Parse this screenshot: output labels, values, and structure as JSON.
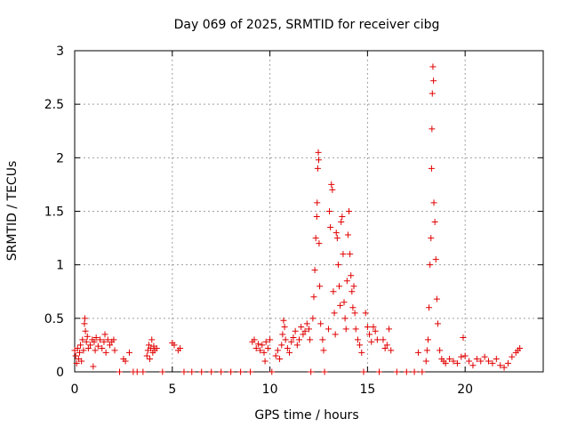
{
  "chart_data": {
    "type": "scatter",
    "title": "Day 069 of 2025, SRMTID for receiver cibg",
    "xlabel": "GPS time / hours",
    "ylabel": "SRMTID / TECUs",
    "xlim": [
      0,
      24.0
    ],
    "ylim": [
      0,
      3
    ],
    "xticks": [
      0,
      5,
      10,
      15,
      20
    ],
    "yticks": [
      0,
      0.5,
      1,
      1.5,
      2,
      2.5,
      3
    ],
    "xtick_labels": [
      "0",
      "5",
      "10",
      "15",
      "20"
    ],
    "ytick_labels": [
      "0",
      "0.5",
      "1",
      "1.5",
      "2",
      "2.5",
      "3"
    ],
    "grid": true,
    "marker": "+",
    "color": "#e00000",
    "series": [
      {
        "name": "SRMTID",
        "points": [
          [
            0.0,
            0.2
          ],
          [
            0.05,
            0.15
          ],
          [
            0.1,
            0.08
          ],
          [
            0.15,
            0.22
          ],
          [
            0.2,
            0.12
          ],
          [
            0.25,
            0.18
          ],
          [
            0.3,
            0.25
          ],
          [
            0.35,
            0.1
          ],
          [
            0.4,
            0.3
          ],
          [
            0.45,
            0.2
          ],
          [
            0.5,
            0.45
          ],
          [
            0.52,
            0.5
          ],
          [
            0.55,
            0.38
          ],
          [
            0.6,
            0.28
          ],
          [
            0.65,
            0.33
          ],
          [
            0.7,
            0.22
          ],
          [
            0.8,
            0.25
          ],
          [
            0.9,
            0.3
          ],
          [
            0.95,
            0.05
          ],
          [
            1.0,
            0.28
          ],
          [
            1.05,
            0.2
          ],
          [
            1.1,
            0.32
          ],
          [
            1.2,
            0.24
          ],
          [
            1.3,
            0.3
          ],
          [
            1.4,
            0.22
          ],
          [
            1.5,
            0.28
          ],
          [
            1.55,
            0.35
          ],
          [
            1.6,
            0.18
          ],
          [
            1.7,
            0.3
          ],
          [
            1.8,
            0.25
          ],
          [
            1.9,
            0.28
          ],
          [
            2.0,
            0.3
          ],
          [
            2.05,
            0.2
          ],
          [
            2.3,
            0.0
          ],
          [
            2.5,
            0.12
          ],
          [
            2.6,
            0.1
          ],
          [
            2.8,
            0.18
          ],
          [
            3.0,
            0.0
          ],
          [
            3.2,
            0.0
          ],
          [
            3.5,
            0.0
          ],
          [
            3.7,
            0.15
          ],
          [
            3.75,
            0.2
          ],
          [
            3.8,
            0.25
          ],
          [
            3.85,
            0.12
          ],
          [
            3.9,
            0.22
          ],
          [
            3.95,
            0.3
          ],
          [
            4.0,
            0.18
          ],
          [
            4.05,
            0.24
          ],
          [
            4.1,
            0.2
          ],
          [
            4.2,
            0.22
          ],
          [
            4.5,
            0.0
          ],
          [
            5.0,
            0.27
          ],
          [
            5.1,
            0.25
          ],
          [
            5.3,
            0.2
          ],
          [
            5.4,
            0.22
          ],
          [
            5.6,
            0.0
          ],
          [
            6.0,
            0.0
          ],
          [
            6.5,
            0.0
          ],
          [
            7.0,
            0.0
          ],
          [
            7.5,
            0.0
          ],
          [
            8.0,
            0.0
          ],
          [
            8.5,
            0.0
          ],
          [
            9.0,
            0.0
          ],
          [
            9.1,
            0.28
          ],
          [
            9.2,
            0.3
          ],
          [
            9.3,
            0.22
          ],
          [
            9.4,
            0.26
          ],
          [
            9.5,
            0.2
          ],
          [
            9.6,
            0.25
          ],
          [
            9.7,
            0.18
          ],
          [
            9.75,
            0.1
          ],
          [
            9.8,
            0.28
          ],
          [
            9.9,
            0.22
          ],
          [
            10.0,
            0.3
          ],
          [
            10.1,
            0.0
          ],
          [
            10.3,
            0.15
          ],
          [
            10.4,
            0.2
          ],
          [
            10.5,
            0.12
          ],
          [
            10.6,
            0.25
          ],
          [
            10.65,
            0.35
          ],
          [
            10.7,
            0.48
          ],
          [
            10.75,
            0.42
          ],
          [
            10.8,
            0.3
          ],
          [
            10.9,
            0.22
          ],
          [
            11.0,
            0.18
          ],
          [
            11.1,
            0.28
          ],
          [
            11.2,
            0.32
          ],
          [
            11.3,
            0.38
          ],
          [
            11.4,
            0.25
          ],
          [
            11.5,
            0.3
          ],
          [
            11.6,
            0.42
          ],
          [
            11.7,
            0.35
          ],
          [
            11.8,
            0.38
          ],
          [
            11.9,
            0.45
          ],
          [
            12.0,
            0.4
          ],
          [
            12.05,
            0.3
          ],
          [
            12.1,
            0.0
          ],
          [
            12.2,
            0.5
          ],
          [
            12.25,
            0.7
          ],
          [
            12.3,
            0.95
          ],
          [
            12.35,
            1.25
          ],
          [
            12.4,
            1.45
          ],
          [
            12.42,
            1.58
          ],
          [
            12.45,
            1.9
          ],
          [
            12.48,
            2.05
          ],
          [
            12.5,
            1.98
          ],
          [
            12.52,
            1.2
          ],
          [
            12.55,
            0.8
          ],
          [
            12.6,
            0.45
          ],
          [
            12.7,
            0.3
          ],
          [
            12.75,
            0.2
          ],
          [
            12.8,
            0.0
          ],
          [
            13.0,
            0.4
          ],
          [
            13.05,
            1.5
          ],
          [
            13.1,
            1.35
          ],
          [
            13.15,
            1.75
          ],
          [
            13.2,
            1.7
          ],
          [
            13.25,
            0.75
          ],
          [
            13.3,
            0.55
          ],
          [
            13.35,
            0.35
          ],
          [
            13.4,
            1.3
          ],
          [
            13.45,
            1.25
          ],
          [
            13.5,
            1.0
          ],
          [
            13.55,
            0.8
          ],
          [
            13.6,
            0.62
          ],
          [
            13.65,
            1.4
          ],
          [
            13.7,
            1.45
          ],
          [
            13.75,
            1.1
          ],
          [
            13.8,
            0.65
          ],
          [
            13.85,
            0.5
          ],
          [
            13.9,
            0.4
          ],
          [
            13.95,
            0.85
          ],
          [
            14.0,
            1.28
          ],
          [
            14.05,
            1.5
          ],
          [
            14.1,
            1.1
          ],
          [
            14.15,
            0.9
          ],
          [
            14.2,
            0.75
          ],
          [
            14.25,
            0.6
          ],
          [
            14.3,
            0.8
          ],
          [
            14.35,
            0.55
          ],
          [
            14.4,
            0.4
          ],
          [
            14.5,
            0.3
          ],
          [
            14.6,
            0.25
          ],
          [
            14.7,
            0.18
          ],
          [
            14.8,
            0.0
          ],
          [
            14.9,
            0.55
          ],
          [
            15.0,
            0.42
          ],
          [
            15.1,
            0.35
          ],
          [
            15.2,
            0.28
          ],
          [
            15.3,
            0.42
          ],
          [
            15.4,
            0.38
          ],
          [
            15.5,
            0.3
          ],
          [
            15.6,
            0.0
          ],
          [
            15.8,
            0.3
          ],
          [
            15.9,
            0.22
          ],
          [
            16.0,
            0.25
          ],
          [
            16.1,
            0.4
          ],
          [
            16.2,
            0.2
          ],
          [
            16.5,
            0.0
          ],
          [
            17.0,
            0.0
          ],
          [
            17.4,
            0.0
          ],
          [
            17.6,
            0.18
          ],
          [
            17.8,
            0.0
          ],
          [
            18.0,
            0.1
          ],
          [
            18.05,
            0.2
          ],
          [
            18.1,
            0.3
          ],
          [
            18.15,
            0.6
          ],
          [
            18.2,
            1.0
          ],
          [
            18.25,
            1.25
          ],
          [
            18.28,
            1.9
          ],
          [
            18.3,
            2.27
          ],
          [
            18.32,
            2.6
          ],
          [
            18.35,
            2.85
          ],
          [
            18.38,
            2.72
          ],
          [
            18.4,
            1.58
          ],
          [
            18.45,
            1.4
          ],
          [
            18.5,
            1.05
          ],
          [
            18.55,
            0.68
          ],
          [
            18.6,
            0.45
          ],
          [
            18.7,
            0.2
          ],
          [
            18.8,
            0.12
          ],
          [
            18.9,
            0.1
          ],
          [
            19.0,
            0.08
          ],
          [
            19.2,
            0.12
          ],
          [
            19.4,
            0.1
          ],
          [
            19.6,
            0.08
          ],
          [
            19.8,
            0.14
          ],
          [
            19.9,
            0.32
          ],
          [
            20.0,
            0.15
          ],
          [
            20.2,
            0.1
          ],
          [
            20.4,
            0.06
          ],
          [
            20.6,
            0.12
          ],
          [
            20.8,
            0.1
          ],
          [
            21.0,
            0.14
          ],
          [
            21.2,
            0.1
          ],
          [
            21.4,
            0.08
          ],
          [
            21.6,
            0.12
          ],
          [
            21.8,
            0.06
          ],
          [
            22.0,
            0.04
          ],
          [
            22.2,
            0.08
          ],
          [
            22.4,
            0.14
          ],
          [
            22.6,
            0.18
          ],
          [
            22.7,
            0.2
          ],
          [
            22.8,
            0.22
          ]
        ]
      }
    ]
  }
}
